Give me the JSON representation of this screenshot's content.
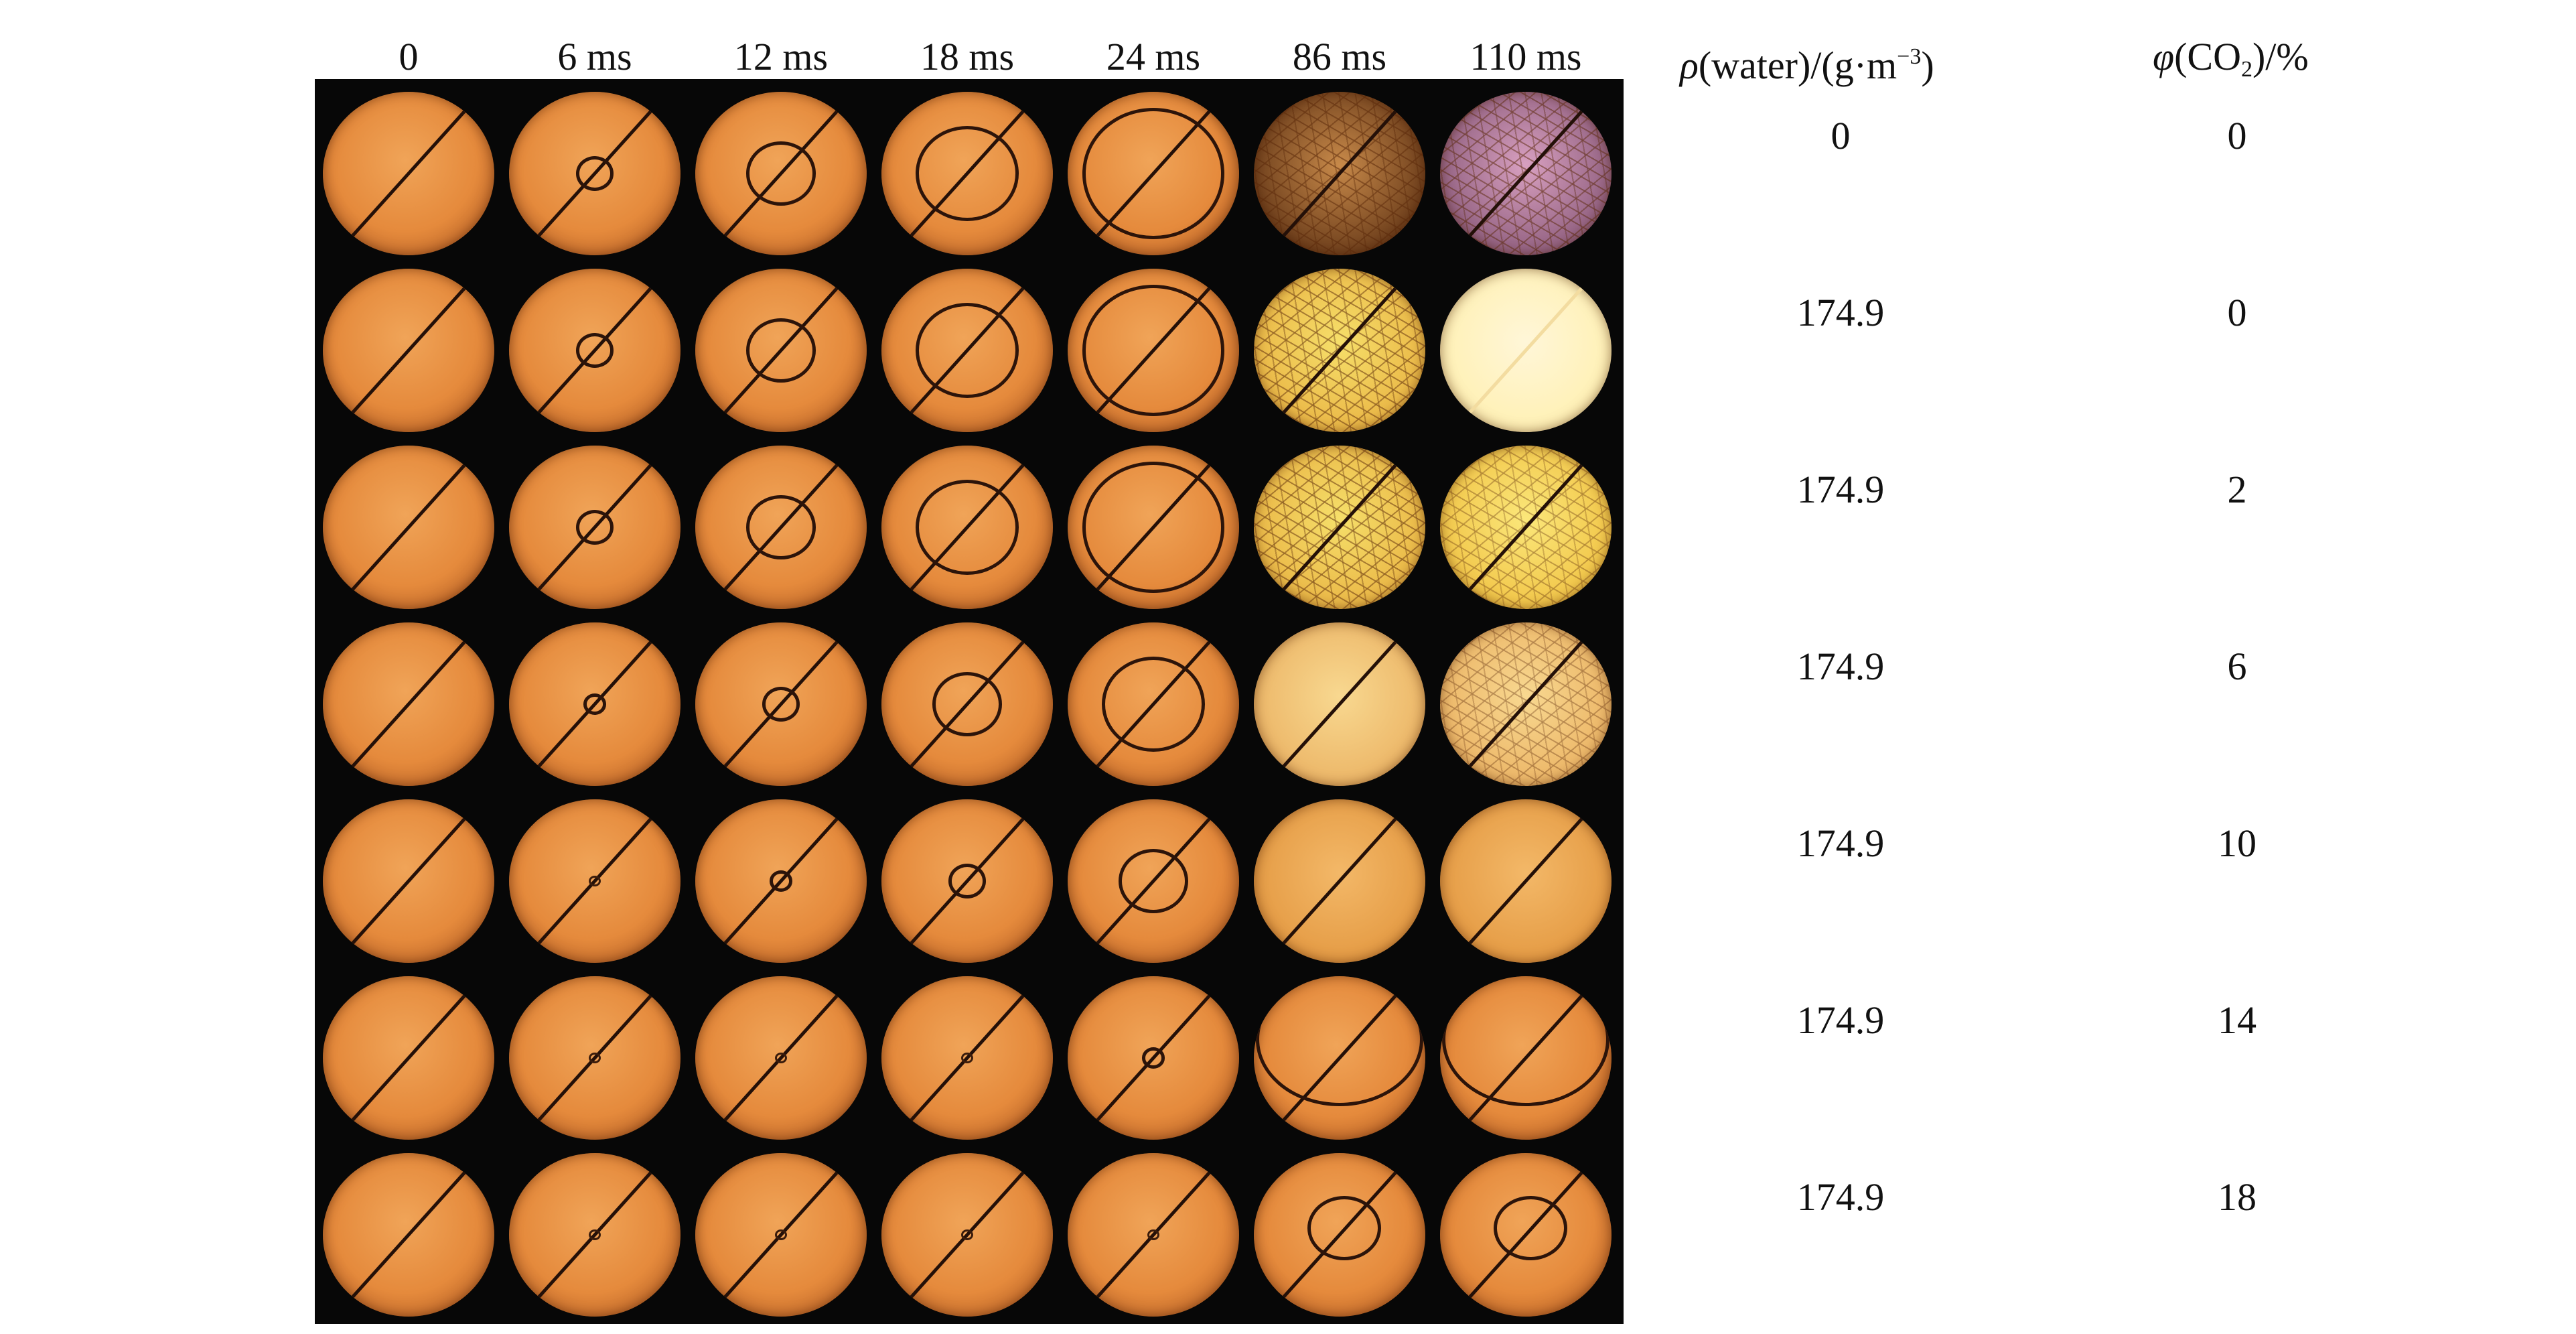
{
  "time_labels": [
    "0",
    "6 ms",
    "12 ms",
    "18 ms",
    "24 ms",
    "86 ms",
    "110 ms"
  ],
  "column_headers": {
    "water": {
      "symbol": "ρ",
      "text": "(water)/(g·m",
      "exponent": "−3",
      "close": ")"
    },
    "co2": {
      "symbol": "φ",
      "open": "(CO",
      "subscript": "2",
      "text": ")/%"
    }
  },
  "rows": [
    {
      "water": "0",
      "co2": "0"
    },
    {
      "water": "174.9",
      "co2": "0"
    },
    {
      "water": "174.9",
      "co2": "2"
    },
    {
      "water": "174.9",
      "co2": "6"
    },
    {
      "water": "174.9",
      "co2": "10"
    },
    {
      "water": "174.9",
      "co2": "14"
    },
    {
      "water": "174.9",
      "co2": "18"
    }
  ],
  "colors": {
    "frame_background": "#070707",
    "unburned_orange": "#e58a3c",
    "bright_yellow": "#f6df6a",
    "white_hot": "#fff6d8",
    "pink_burned": "#d8a0c0",
    "flame_front": "#2c140a"
  },
  "frames_description": [
    [
      "plain",
      "ring-s",
      "ring-m",
      "ring-l",
      "ring-xl",
      "cracked-dark",
      "cracked-pink"
    ],
    [
      "plain",
      "ring-s",
      "ring-m",
      "ring-l",
      "ring-xl",
      "cracked-yellow",
      "white"
    ],
    [
      "plain",
      "ring-s",
      "ring-m",
      "ring-l",
      "ring-xl",
      "cracked-yellow",
      "yellow-fine"
    ],
    [
      "plain",
      "ring-xs",
      "ring-s",
      "ring-m",
      "ring-l",
      "pale",
      "cracked-pale"
    ],
    [
      "plain",
      "dot",
      "ring-xs",
      "ring-s",
      "ring-m",
      "pale-orange",
      "pale-orange"
    ],
    [
      "plain",
      "dot",
      "dot",
      "dot",
      "ring-xs",
      "ring-bottom",
      "ring-bottom"
    ],
    [
      "plain",
      "dot",
      "dot",
      "dot",
      "dot",
      "ring-small-bottom",
      "ring-small-bottom"
    ]
  ]
}
